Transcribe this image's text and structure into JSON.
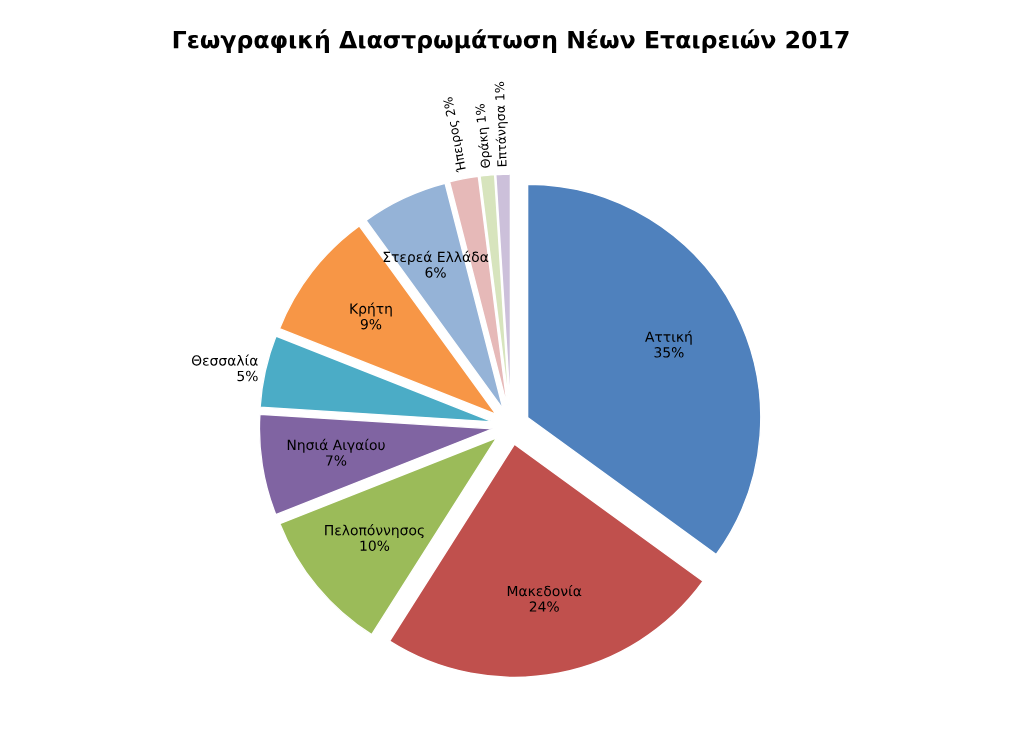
{
  "chart_data": {
    "type": "pie",
    "title": "Γεωγραφική Διαστρωμάτωση Νέων Εταιρειών 2017",
    "categories": [
      "Αττική",
      "Μακεδονία",
      "Πελοπόννησος",
      "Νησιά Αιγαίου",
      "Θεσσαλία",
      "Κρήτη",
      "Στερεά Ελλάδα",
      "Ήπειρος",
      "Θράκη",
      "Επτάνησα"
    ],
    "values": [
      35,
      24,
      10,
      7,
      5,
      9,
      6,
      2,
      1,
      1
    ],
    "value_labels": [
      "35%",
      "24%",
      "10%",
      "7%",
      "5%",
      "9%",
      "6%",
      "2%",
      "1%",
      "1%"
    ],
    "colors": [
      "#4f81bd",
      "#c0504d",
      "#9bbb59",
      "#8064a2",
      "#4bacc6",
      "#f79646",
      "#95b3d7",
      "#e6b9b8",
      "#d7e4bd",
      "#ccc0da"
    ]
  }
}
